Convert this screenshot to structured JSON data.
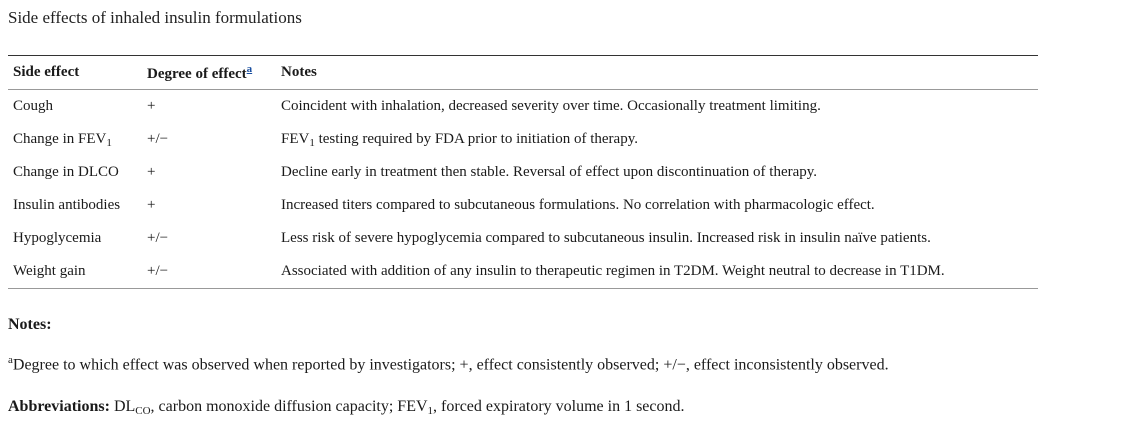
{
  "caption": "Side effects of inhaled insulin formulations",
  "table": {
    "headers": {
      "side_effect": "Side effect",
      "degree": "Degree of effect",
      "degree_footnote": "a",
      "notes": "Notes"
    },
    "rows": [
      {
        "effect": "Cough",
        "effect_sub": "",
        "degree": "+",
        "note_prefix": "",
        "note_sub": "",
        "note": "Coincident with inhalation, decreased severity over time. Occasionally treatment limiting."
      },
      {
        "effect": "Change in FEV",
        "effect_sub": "1",
        "degree": "+/−",
        "note_prefix": "FEV",
        "note_sub": "1",
        "note": " testing required by FDA prior to initiation of therapy."
      },
      {
        "effect": "Change in DLCO",
        "effect_sub": "",
        "degree": "+",
        "note_prefix": "",
        "note_sub": "",
        "note": "Decline early in treatment then stable. Reversal of effect upon discontinuation of therapy."
      },
      {
        "effect": "Insulin antibodies",
        "effect_sub": "",
        "degree": "+",
        "note_prefix": "",
        "note_sub": "",
        "note": "Increased titers compared to subcutaneous formulations. No correlation with pharmacologic effect."
      },
      {
        "effect": "Hypoglycemia",
        "effect_sub": "",
        "degree": "+/−",
        "note_prefix": "",
        "note_sub": "",
        "note": "Less risk of severe hypoglycemia compared to subcutaneous insulin. Increased risk in insulin naïve patients."
      },
      {
        "effect": "Weight gain",
        "effect_sub": "",
        "degree": "+/−",
        "note_prefix": "",
        "note_sub": "",
        "note": "Associated with addition of any insulin to therapeutic regimen in T2DM. Weight neutral to decrease in T1DM."
      }
    ]
  },
  "notes": {
    "heading": "Notes:",
    "footnote_marker": "a",
    "footnote_text": "Degree to which effect was observed when reported by investigators; +, effect consistently observed; +/−, effect inconsistently observed.",
    "abbrev_label": "Abbreviations:",
    "abbrev_dl": " DL",
    "abbrev_dl_sub": "CO",
    "abbrev_dl_text": ", carbon monoxide diffusion capacity; FEV",
    "abbrev_fev_sub": "1",
    "abbrev_fev_text": ", forced expiratory volume in 1 second."
  }
}
